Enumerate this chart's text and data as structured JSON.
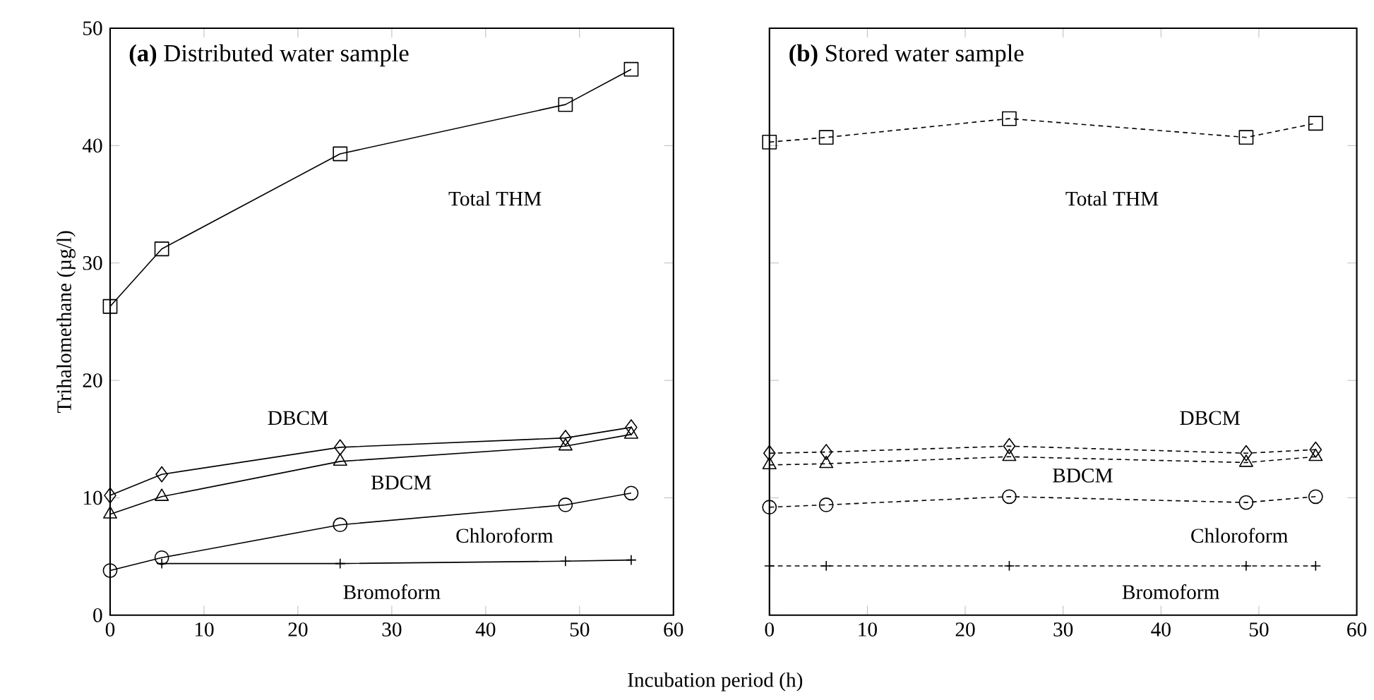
{
  "chart_data": [
    {
      "type": "line",
      "title": "**(a)** Distributed water sample",
      "xlabel": "Incubation period (h)",
      "ylabel": "Trihalomethane (µg/l)",
      "xlim": [
        0,
        60
      ],
      "ylim": [
        0,
        50
      ],
      "xticks": [
        0,
        10,
        20,
        30,
        40,
        50,
        60
      ],
      "yticks": [
        0,
        10,
        20,
        30,
        40,
        50
      ],
      "line_style": "solid",
      "grid": false,
      "series": [
        {
          "name": "Total THM",
          "color": "#000000",
          "marker": "square",
          "x": [
            0,
            5.5,
            24.5,
            48.5,
            55.5
          ],
          "values": [
            26.3,
            31.2,
            39.3,
            43.5,
            46.5
          ]
        },
        {
          "name": "DBCM",
          "color": "#000000",
          "marker": "diamond",
          "x": [
            0,
            5.5,
            24.5,
            48.5,
            55.5
          ],
          "values": [
            10.2,
            12.0,
            14.3,
            15.1,
            16.0
          ]
        },
        {
          "name": "BDCM",
          "color": "#000000",
          "marker": "triangle",
          "x": [
            0,
            5.5,
            24.5,
            48.5,
            55.5
          ],
          "values": [
            8.6,
            10.1,
            13.1,
            14.4,
            15.4
          ]
        },
        {
          "name": "Chloroform",
          "color": "#000000",
          "marker": "circle",
          "x": [
            0,
            5.5,
            24.5,
            48.5,
            55.5
          ],
          "values": [
            3.8,
            4.9,
            7.7,
            9.4,
            10.4
          ]
        },
        {
          "name": "Bromoform",
          "color": "#000000",
          "marker": "cross",
          "x": [
            5.5,
            24.5,
            48.5,
            55.5
          ],
          "values": [
            4.4,
            4.4,
            4.6,
            4.7
          ]
        }
      ]
    },
    {
      "type": "line",
      "title": "**(b)** Stored water sample",
      "xlim": [
        0,
        60
      ],
      "ylim": [
        0,
        50
      ],
      "xticks": [
        0,
        10,
        20,
        30,
        40,
        50,
        60
      ],
      "yticks": [
        0,
        10,
        20,
        30,
        40,
        50
      ],
      "tick_labels": "x",
      "line_style": "dashed",
      "grid": false,
      "series": [
        {
          "name": "Total THM",
          "color": "#000000",
          "marker": "square",
          "x": [
            0,
            5.8,
            24.5,
            48.7,
            55.8
          ],
          "values": [
            40.3,
            40.7,
            42.3,
            40.7,
            41.9
          ]
        },
        {
          "name": "DBCM",
          "color": "#000000",
          "marker": "diamond",
          "x": [
            0,
            5.8,
            24.5,
            48.7,
            55.8
          ],
          "values": [
            13.8,
            13.9,
            14.4,
            13.8,
            14.1
          ]
        },
        {
          "name": "BDCM",
          "color": "#000000",
          "marker": "triangle",
          "x": [
            0,
            5.8,
            24.5,
            48.7,
            55.8
          ],
          "values": [
            12.8,
            12.9,
            13.5,
            13.0,
            13.5
          ]
        },
        {
          "name": "Chloroform",
          "color": "#000000",
          "marker": "circle",
          "x": [
            0,
            5.8,
            24.5,
            48.7,
            55.8
          ],
          "values": [
            9.2,
            9.4,
            10.1,
            9.6,
            10.1
          ]
        },
        {
          "name": "Bromoform",
          "color": "#000000",
          "marker": "cross",
          "x": [
            0,
            5.8,
            24.5,
            48.7,
            55.8
          ],
          "values": [
            4.2,
            4.2,
            4.2,
            4.2,
            4.2
          ]
        }
      ]
    }
  ]
}
